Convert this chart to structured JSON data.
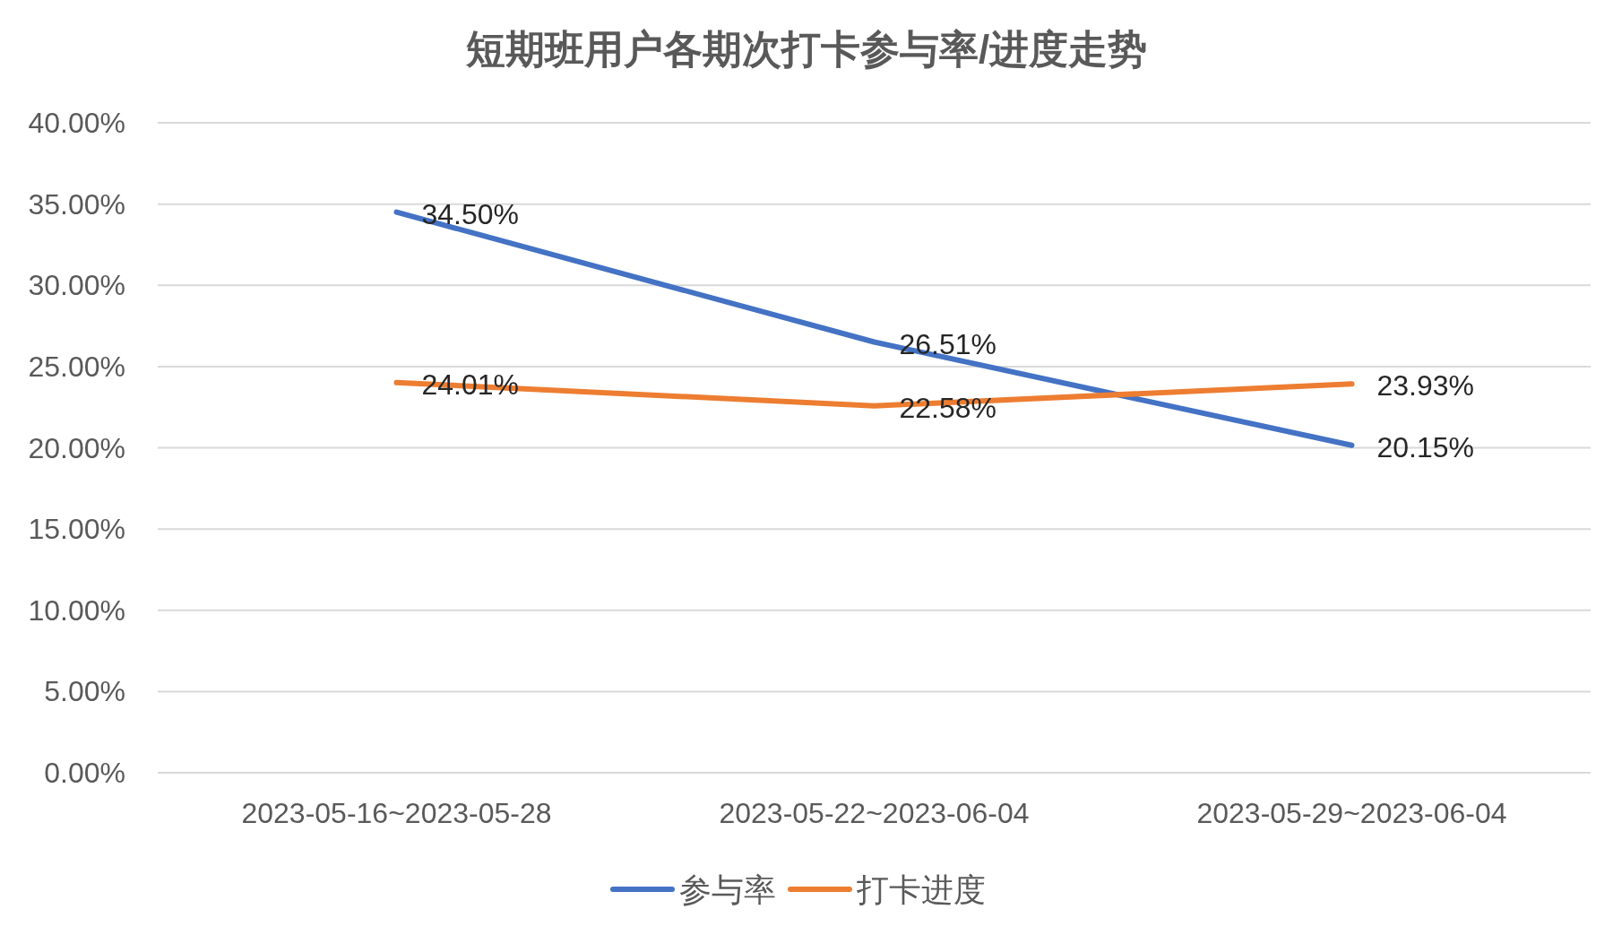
{
  "chart_data": {
    "type": "line",
    "title": "短期班用户各期次打卡参与率/进度走势",
    "categories": [
      "2023-05-16~2023-05-28",
      "2023-05-22~2023-06-04",
      "2023-05-29~2023-06-04"
    ],
    "series": [
      {
        "name": "参与率",
        "color": "#4472c4",
        "values": [
          34.5,
          26.51,
          20.15
        ],
        "value_labels": [
          "34.50%",
          "26.51%",
          "20.15%"
        ]
      },
      {
        "name": "打卡进度",
        "color": "#ed7d31",
        "values": [
          24.01,
          22.58,
          23.93
        ],
        "value_labels": [
          "24.01%",
          "22.58%",
          "23.93%"
        ]
      }
    ],
    "ylim": [
      0,
      40
    ],
    "yticks": [
      {
        "value": 0,
        "label": "0.00%"
      },
      {
        "value": 5,
        "label": "5.00%"
      },
      {
        "value": 10,
        "label": "10.00%"
      },
      {
        "value": 15,
        "label": "15.00%"
      },
      {
        "value": 20,
        "label": "20.00%"
      },
      {
        "value": 25,
        "label": "25.00%"
      },
      {
        "value": 30,
        "label": "30.00%"
      },
      {
        "value": 35,
        "label": "35.00%"
      },
      {
        "value": 40,
        "label": "40.00%"
      }
    ],
    "grid": "y",
    "legend": "bottom",
    "marker": "none",
    "line_style": "solid"
  }
}
